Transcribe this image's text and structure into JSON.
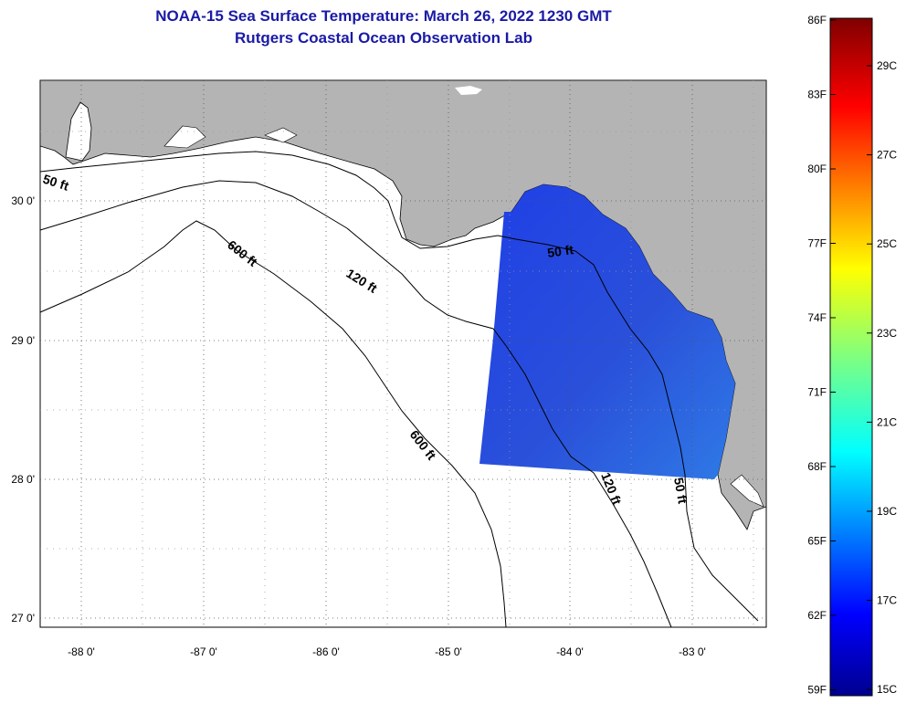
{
  "title": {
    "line1": "NOAA-15 Sea Surface Temperature:  March 26, 2022 1230 GMT",
    "line2": "Rutgers Coastal Ocean Observation Lab"
  },
  "axes": {
    "lat_labels": [
      "30 0'",
      "29 0'",
      "28 0'",
      "27 0'"
    ],
    "lon_labels": [
      "-88 0'",
      "-87 0'",
      "-86 0'",
      "-85 0'",
      "-84 0'",
      "-83 0'"
    ]
  },
  "contours": {
    "ft50_a": "50 ft",
    "ft600_a": "600 ft",
    "ft120_a": "120 ft",
    "ft50_b": "50 ft",
    "ft600_b": "600 ft",
    "ft120_b": "120 ft",
    "ft50_c": "50 ft"
  },
  "colorbar": {
    "f_labels": [
      "86F",
      "83F",
      "80F",
      "77F",
      "74F",
      "71F",
      "68F",
      "65F",
      "62F",
      "59F"
    ],
    "c_labels": [
      "29C",
      "27C",
      "25C",
      "23C",
      "21C",
      "19C",
      "17C",
      "15C"
    ]
  },
  "colors": {
    "land": "#b4b4b4",
    "ocean": "#ffffff",
    "sst_patch": "#2458e0"
  }
}
